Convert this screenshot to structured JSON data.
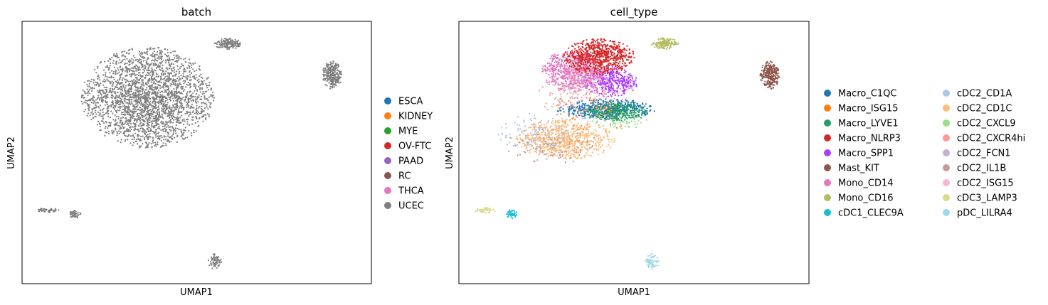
{
  "chart_data": [
    {
      "type": "scatter",
      "title": "batch",
      "xlabel": "UMAP1",
      "ylabel": "UMAP2",
      "xlim": [
        -5,
        20
      ],
      "ylim": [
        -5,
        15
      ],
      "grid": false,
      "legend_position": "right",
      "legend": [
        {
          "name": "ESCA",
          "color": "#1f77b4"
        },
        {
          "name": "KIDNEY",
          "color": "#ff7f0e"
        },
        {
          "name": "MYE",
          "color": "#2ca02c"
        },
        {
          "name": "OV-FTC",
          "color": "#d62728"
        },
        {
          "name": "PAAD",
          "color": "#9467bd"
        },
        {
          "name": "RC",
          "color": "#8c564b"
        },
        {
          "name": "THCA",
          "color": "#e377c2"
        },
        {
          "name": "UCEC",
          "color": "#7f7f7f"
        }
      ],
      "clusters": [
        {
          "name": "UCEC",
          "color": "#7f7f7f",
          "center": [
            4.0,
            9.2
          ],
          "spread": [
            4.8,
            3.9
          ],
          "n": 2600
        },
        {
          "name": "UCEC",
          "color": "#7f7f7f",
          "center": [
            9.7,
            13.3
          ],
          "spread": [
            1.0,
            0.45
          ],
          "n": 150
        },
        {
          "name": "UCEC",
          "color": "#7f7f7f",
          "center": [
            17.2,
            10.9
          ],
          "spread": [
            0.7,
            1.1
          ],
          "n": 260
        },
        {
          "name": "UCEC",
          "color": "#7f7f7f",
          "center": [
            -3.1,
            0.6
          ],
          "spread": [
            0.8,
            0.2
          ],
          "n": 45
        },
        {
          "name": "UCEC",
          "color": "#7f7f7f",
          "center": [
            -1.2,
            0.3
          ],
          "spread": [
            0.4,
            0.4
          ],
          "n": 45
        },
        {
          "name": "UCEC",
          "color": "#7f7f7f",
          "center": [
            8.8,
            -3.3
          ],
          "spread": [
            0.5,
            0.6
          ],
          "n": 70
        }
      ]
    },
    {
      "type": "scatter",
      "title": "cell_type",
      "xlabel": "UMAP1",
      "ylabel": "UMAP2",
      "xlim": [
        -5,
        20
      ],
      "ylim": [
        -5,
        15
      ],
      "grid": false,
      "legend_position": "right",
      "legend_columns": 2,
      "legend": [
        {
          "name": "Macro_C1QC",
          "color": "#1f77b4"
        },
        {
          "name": "Macro_ISG15",
          "color": "#ff7f0e"
        },
        {
          "name": "Macro_LYVE1",
          "color": "#279e68"
        },
        {
          "name": "Macro_NLRP3",
          "color": "#d62728"
        },
        {
          "name": "Macro_SPP1",
          "color": "#aa40fc"
        },
        {
          "name": "Mast_KIT",
          "color": "#8c564b"
        },
        {
          "name": "Mono_CD14",
          "color": "#e377c2"
        },
        {
          "name": "Mono_CD16",
          "color": "#b5bd61"
        },
        {
          "name": "cDC1_CLEC9A",
          "color": "#17becf"
        },
        {
          "name": "cDC2_CD1A",
          "color": "#aec7e8"
        },
        {
          "name": "cDC2_CD1C",
          "color": "#ffbb78"
        },
        {
          "name": "cDC2_CXCL9",
          "color": "#98df8a"
        },
        {
          "name": "cDC2_CXCR4hi",
          "color": "#ff9896"
        },
        {
          "name": "cDC2_FCN1",
          "color": "#c5b0d5"
        },
        {
          "name": "cDC2_IL1B",
          "color": "#c49c94"
        },
        {
          "name": "cDC2_ISG15",
          "color": "#f7b6d2"
        },
        {
          "name": "cDC3_LAMP3",
          "color": "#dbdb8d"
        },
        {
          "name": "pDC_LILRA4",
          "color": "#9edae5"
        }
      ],
      "clusters": [
        {
          "name": "cDC2_CD1C",
          "color": "#ffbb78",
          "center": [
            2.6,
            6.0
          ],
          "spread": [
            3.6,
            1.6
          ],
          "n": 700
        },
        {
          "name": "cDC2_IL1B",
          "color": "#c49c94",
          "center": [
            1.5,
            5.6
          ],
          "spread": [
            3.4,
            1.5
          ],
          "n": 120
        },
        {
          "name": "cDC2_CD1A",
          "color": "#aec7e8",
          "center": [
            0.5,
            6.4
          ],
          "spread": [
            2.8,
            1.6
          ],
          "n": 110
        },
        {
          "name": "Macro_C1QC",
          "color": "#1f77b4",
          "center": [
            5.5,
            8.3
          ],
          "spread": [
            3.6,
            0.8
          ],
          "n": 500
        },
        {
          "name": "Macro_LYVE1",
          "color": "#279e68",
          "center": [
            6.2,
            8.1
          ],
          "spread": [
            2.4,
            0.7
          ],
          "n": 320
        },
        {
          "name": "Macro_SPP1",
          "color": "#aa40fc",
          "center": [
            5.8,
            10.4
          ],
          "spread": [
            2.0,
            1.2
          ],
          "n": 420
        },
        {
          "name": "Mono_CD14",
          "color": "#e377c2",
          "center": [
            3.2,
            11.2
          ],
          "spread": [
            2.4,
            1.6
          ],
          "n": 700
        },
        {
          "name": "Macro_NLRP3",
          "color": "#d62728",
          "center": [
            5.0,
            12.3
          ],
          "spread": [
            2.6,
            1.4
          ],
          "n": 750
        },
        {
          "name": "cDC2_ISG15",
          "color": "#f7b6d2",
          "center": [
            4.5,
            10.0
          ],
          "spread": [
            3.0,
            2.0
          ],
          "n": 120
        },
        {
          "name": "cDC2_CXCL9",
          "color": "#98df8a",
          "center": [
            6.5,
            7.4
          ],
          "spread": [
            2.0,
            0.8
          ],
          "n": 60
        },
        {
          "name": "cDC2_CXCR4hi",
          "color": "#ff9896",
          "center": [
            3.5,
            9.5
          ],
          "spread": [
            3.0,
            2.0
          ],
          "n": 60
        },
        {
          "name": "cDC2_FCN1",
          "color": "#c5b0d5",
          "center": [
            4.0,
            9.0
          ],
          "spread": [
            3.0,
            2.0
          ],
          "n": 60
        },
        {
          "name": "Macro_ISG15",
          "color": "#ff7f0e",
          "center": [
            4.2,
            8.0
          ],
          "spread": [
            2.8,
            2.0
          ],
          "n": 50
        },
        {
          "name": "Mono_CD16",
          "color": "#b5bd61",
          "center": [
            9.7,
            13.3
          ],
          "spread": [
            1.0,
            0.45
          ],
          "n": 150
        },
        {
          "name": "Mast_KIT",
          "color": "#8c564b",
          "center": [
            17.2,
            10.9
          ],
          "spread": [
            0.7,
            1.1
          ],
          "n": 260
        },
        {
          "name": "cDC3_LAMP3",
          "color": "#dbdb8d",
          "center": [
            -3.1,
            0.6
          ],
          "spread": [
            0.8,
            0.2
          ],
          "n": 45
        },
        {
          "name": "cDC1_CLEC9A",
          "color": "#17becf",
          "center": [
            -1.2,
            0.3
          ],
          "spread": [
            0.4,
            0.4
          ],
          "n": 45
        },
        {
          "name": "pDC_LILRA4",
          "color": "#9edae5",
          "center": [
            8.8,
            -3.3
          ],
          "spread": [
            0.5,
            0.6
          ],
          "n": 70
        }
      ]
    }
  ]
}
